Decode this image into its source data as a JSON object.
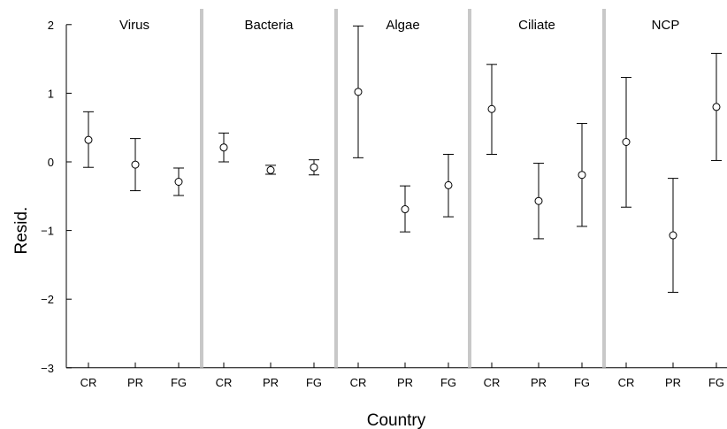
{
  "chart_data": {
    "type": "scatter",
    "xlabel": "Country",
    "ylabel": "Resid.",
    "ylim": [
      -3,
      2
    ],
    "yticks": [
      "2",
      "1",
      "0",
      "−1",
      "−2",
      "−3"
    ],
    "categories": [
      "CR",
      "PR",
      "FG"
    ],
    "grid": false,
    "marker": "open-circle",
    "colors": {
      "points": "#000000",
      "separator": "#c8c8c8",
      "axis": "#000000"
    },
    "panels": [
      {
        "title": "Virus",
        "points": [
          {
            "x": "CR",
            "y": 0.32,
            "lo": -0.08,
            "hi": 0.73
          },
          {
            "x": "PR",
            "y": -0.04,
            "lo": -0.42,
            "hi": 0.34
          },
          {
            "x": "FG",
            "y": -0.29,
            "lo": -0.49,
            "hi": -0.09
          }
        ]
      },
      {
        "title": "Bacteria",
        "points": [
          {
            "x": "CR",
            "y": 0.21,
            "lo": 0.0,
            "hi": 0.42
          },
          {
            "x": "PR",
            "y": -0.12,
            "lo": -0.18,
            "hi": -0.05
          },
          {
            "x": "FG",
            "y": -0.08,
            "lo": -0.19,
            "hi": 0.03
          }
        ]
      },
      {
        "title": "Algae",
        "points": [
          {
            "x": "CR",
            "y": 1.02,
            "lo": 0.06,
            "hi": 1.98
          },
          {
            "x": "PR",
            "y": -0.69,
            "lo": -1.02,
            "hi": -0.35
          },
          {
            "x": "FG",
            "y": -0.34,
            "lo": -0.8,
            "hi": 0.11
          }
        ]
      },
      {
        "title": "Ciliate",
        "points": [
          {
            "x": "CR",
            "y": 0.77,
            "lo": 0.11,
            "hi": 1.42
          },
          {
            "x": "PR",
            "y": -0.57,
            "lo": -1.12,
            "hi": -0.02
          },
          {
            "x": "FG",
            "y": -0.19,
            "lo": -0.94,
            "hi": 0.56
          }
        ]
      },
      {
        "title": "NCP",
        "points": [
          {
            "x": "CR",
            "y": 0.29,
            "lo": -0.66,
            "hi": 1.23
          },
          {
            "x": "PR",
            "y": -1.07,
            "lo": -1.9,
            "hi": -0.24
          },
          {
            "x": "FG",
            "y": 0.8,
            "lo": 0.02,
            "hi": 1.58
          }
        ]
      }
    ]
  }
}
